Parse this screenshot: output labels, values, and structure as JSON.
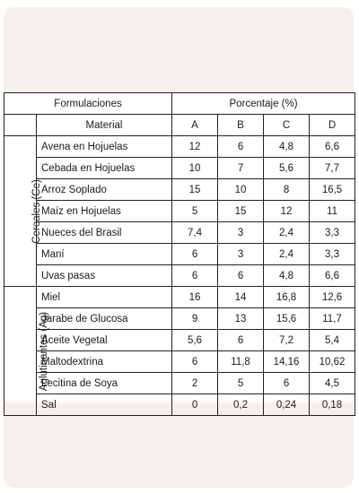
{
  "table": {
    "header_formulaciones": "Formulaciones",
    "header_porcentaje": "Porcentaje (%)",
    "header_material": "Material",
    "columns": [
      "A",
      "B",
      "C",
      "D"
    ],
    "groups": [
      {
        "label": "Cereales (Ce)",
        "rows": [
          {
            "material": "Avena en Hojuelas",
            "values": [
              "12",
              "6",
              "4,8",
              "6,6"
            ]
          },
          {
            "material": "Cebada en Hojuelas",
            "values": [
              "10",
              "7",
              "5,6",
              "7,7"
            ]
          },
          {
            "material": "Arroz Soplado",
            "values": [
              "15",
              "10",
              "8",
              "16,5"
            ]
          },
          {
            "material": "Maíz en Hojuelas",
            "values": [
              "5",
              "15",
              "12",
              "11"
            ]
          },
          {
            "material": "Nueces del Brasil",
            "values": [
              "7,4",
              "3",
              "2,4",
              "3,3"
            ]
          },
          {
            "material": "Maní",
            "values": [
              "6",
              "3",
              "2,4",
              "3,3"
            ]
          },
          {
            "material": "Uvas pasas",
            "values": [
              "6",
              "6",
              "4,8",
              "6,6"
            ]
          }
        ]
      },
      {
        "label": "Aglutinantes (Ag)",
        "rows": [
          {
            "material": "Miel",
            "values": [
              "16",
              "14",
              "16,8",
              "12,6"
            ]
          },
          {
            "material": "Jarabe de Glucosa",
            "values": [
              "9",
              "13",
              "15,6",
              "11,7"
            ]
          },
          {
            "material": "Aceite Vegetal",
            "values": [
              "5,6",
              "6",
              "7,2",
              "5,4"
            ]
          },
          {
            "material": "Maltodextrina",
            "values": [
              "6",
              "11,8",
              "14,16",
              "10,62"
            ]
          },
          {
            "material": "Lecitina de Soya",
            "values": [
              "2",
              "5",
              "6",
              "4,5"
            ]
          },
          {
            "material": "Sal",
            "values": [
              "0",
              "0,2",
              "0,24",
              "0,18"
            ]
          }
        ]
      }
    ]
  }
}
